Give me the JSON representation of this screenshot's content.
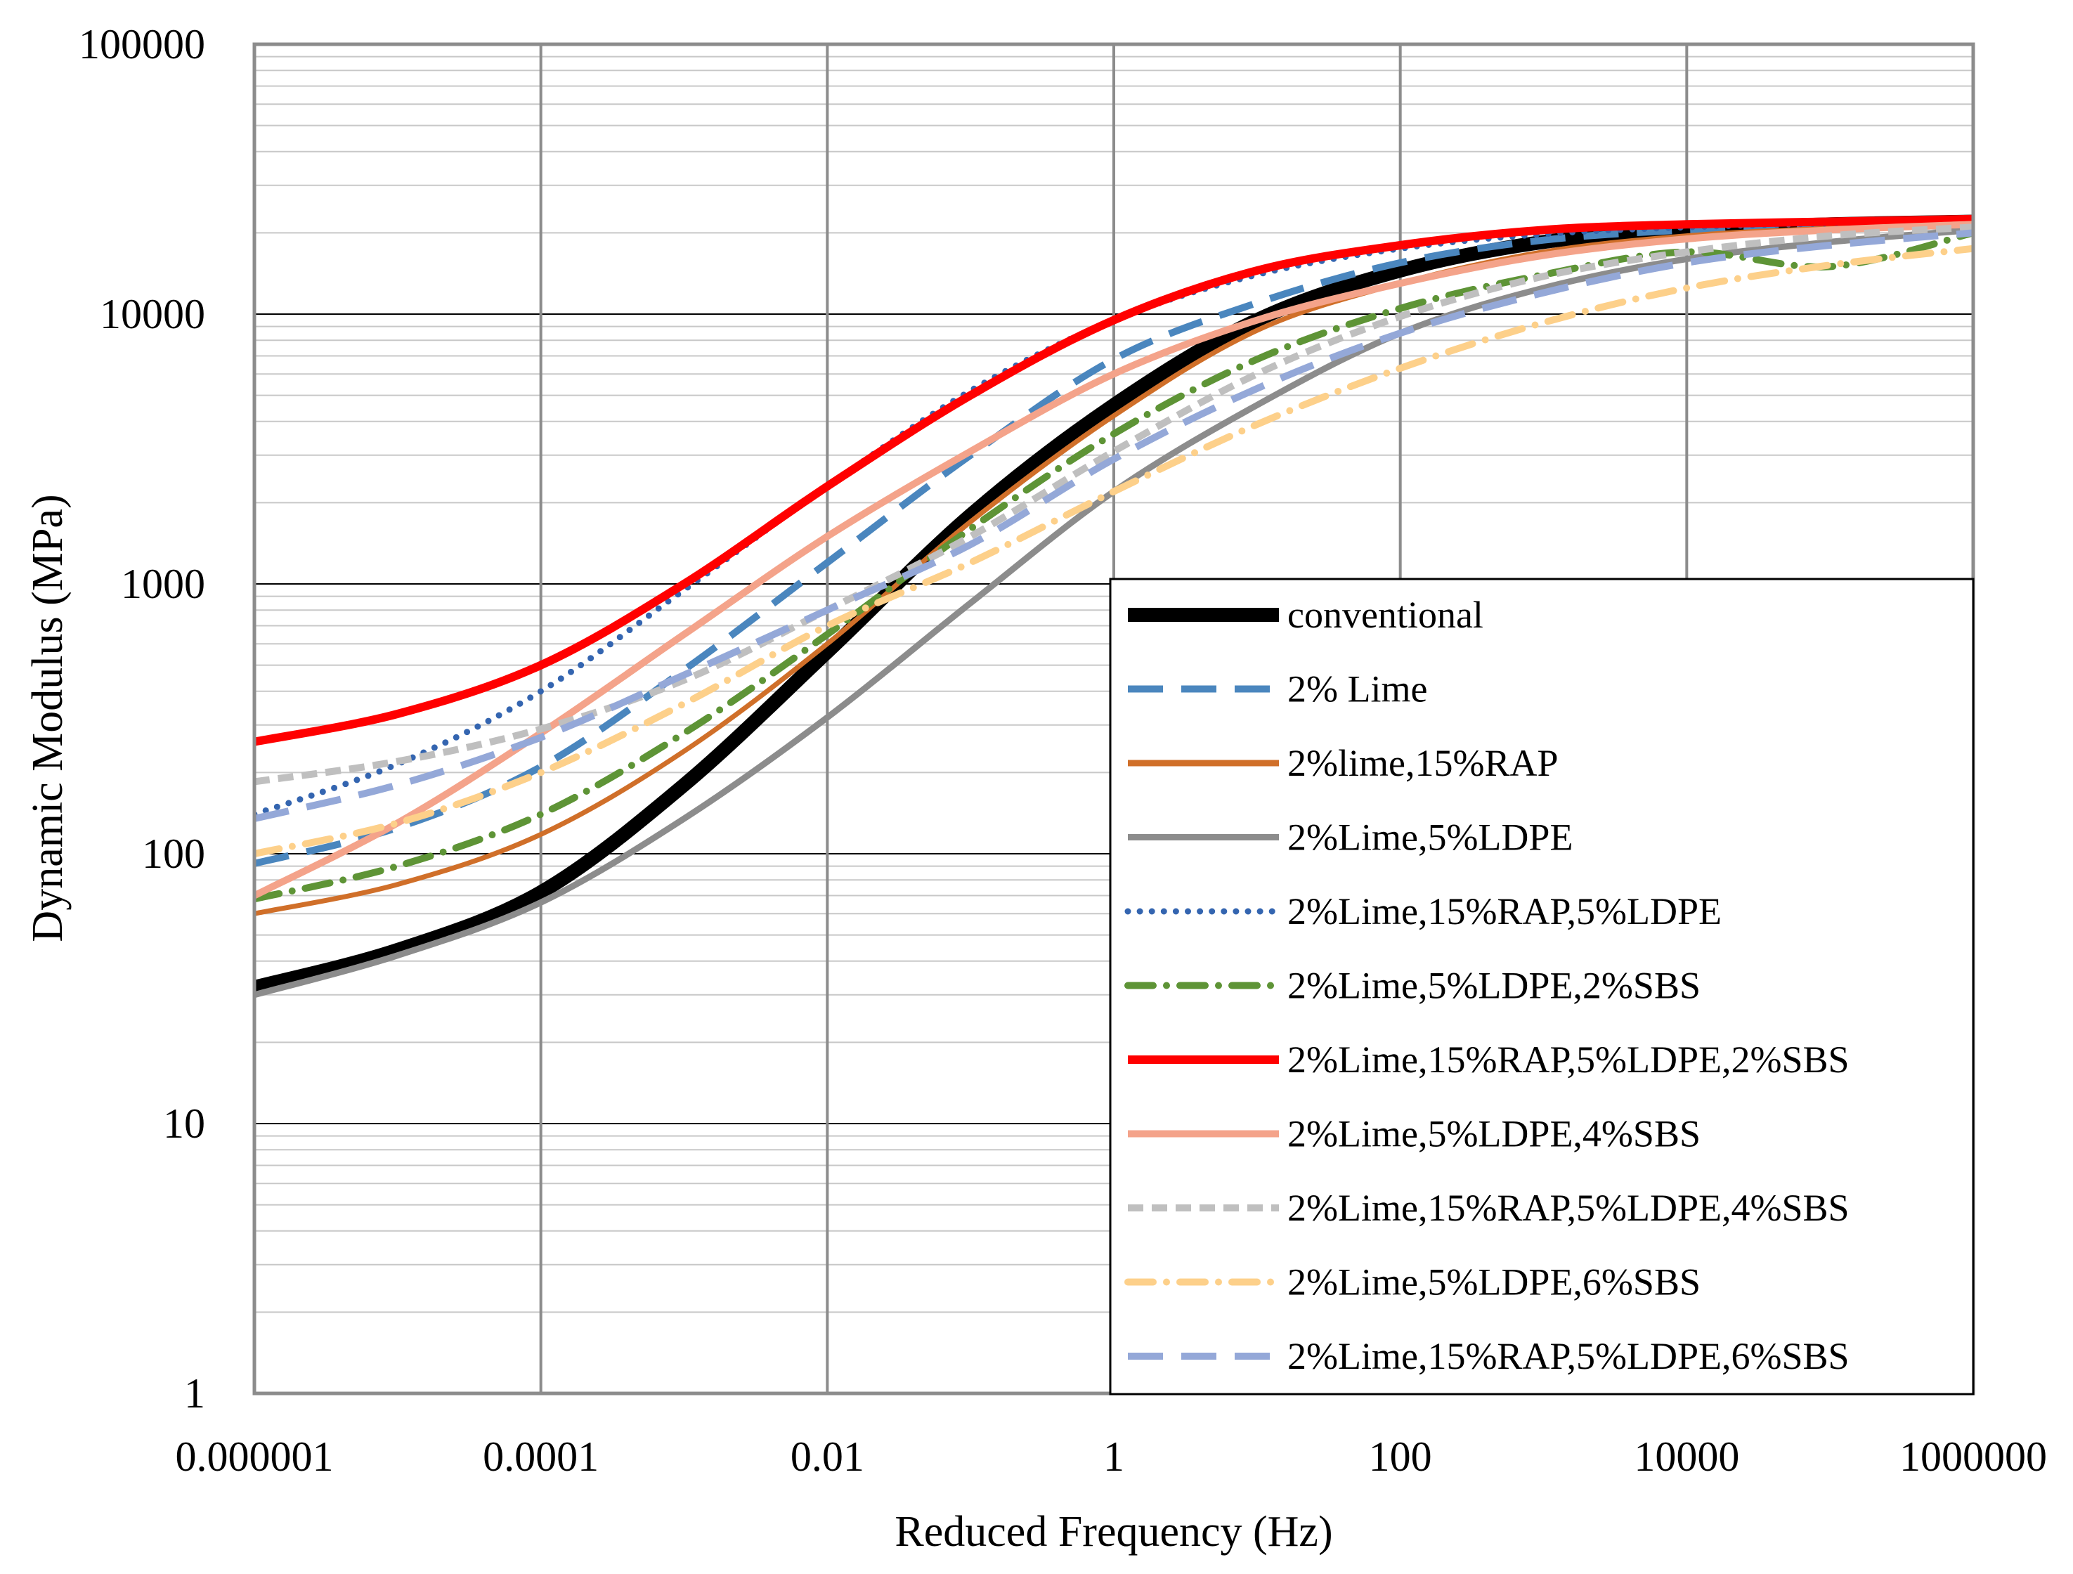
{
  "chart_data": {
    "type": "line",
    "title": "",
    "xlabel": "Reduced Frequency (Hz)",
    "ylabel": "Dynamic Modulus (MPa)",
    "xscale": "log",
    "yscale": "log",
    "xlim": [
      1e-06,
      1000000
    ],
    "ylim": [
      1,
      100000
    ],
    "grid": true,
    "legend_position": "bottom-right",
    "x_ticks": [
      {
        "value": 1e-06,
        "label": "0.000001"
      },
      {
        "value": 0.0001,
        "label": "0.0001"
      },
      {
        "value": 0.01,
        "label": "0.01"
      },
      {
        "value": 1,
        "label": "1"
      },
      {
        "value": 100,
        "label": "100"
      },
      {
        "value": 10000,
        "label": "10000"
      },
      {
        "value": 1000000,
        "label": "1000000"
      }
    ],
    "y_ticks": [
      {
        "value": 1,
        "label": "1"
      },
      {
        "value": 10,
        "label": "10"
      },
      {
        "value": 100,
        "label": "100"
      },
      {
        "value": 1000,
        "label": "1000"
      },
      {
        "value": 10000,
        "label": "10000"
      },
      {
        "value": 100000,
        "label": "100000"
      }
    ],
    "x": [
      1e-06,
      1e-05,
      0.0001,
      0.001,
      0.01,
      0.1,
      1,
      10,
      100,
      1000,
      10000,
      100000,
      1000000
    ],
    "series": [
      {
        "name": "conventional",
        "color": "#000000",
        "dash": "solid",
        "width": 20,
        "values": [
          32,
          44,
          72,
          180,
          560,
          1800,
          4600,
          9500,
          14500,
          18500,
          20500,
          21500,
          22000
        ]
      },
      {
        "name": "2% Lime",
        "color": "#4a86be",
        "dash": "long-dash",
        "width": 10,
        "values": [
          92,
          125,
          210,
          480,
          1200,
          3000,
          6800,
          11000,
          15500,
          18800,
          20500,
          21300,
          21800
        ]
      },
      {
        "name": "2%lime,15%RAP",
        "color": "#d06f29",
        "dash": "solid",
        "width": 7,
        "values": [
          60,
          77,
          118,
          240,
          600,
          1700,
          4200,
          8700,
          13000,
          17000,
          19500,
          20800,
          21500
        ]
      },
      {
        "name": "2%Lime,5%LDPE",
        "color": "#8c8c8c",
        "dash": "solid",
        "width": 9,
        "values": [
          30,
          42,
          66,
          135,
          320,
          850,
          2200,
          4600,
          8500,
          12500,
          16000,
          18500,
          20500
        ]
      },
      {
        "name": "2%Lime,15%RAP,5%LDPE",
        "color": "#3465b0",
        "dash": "dotted",
        "width": 9,
        "values": [
          140,
          215,
          400,
          950,
          2300,
          5200,
          9500,
          14000,
          17500,
          19800,
          21000,
          21700,
          22200
        ]
      },
      {
        "name": "2%Lime,5%LDPE,2%SBS",
        "color": "#5e9436",
        "dash": "dash-dot",
        "width": 10,
        "values": [
          68,
          90,
          140,
          280,
          650,
          1600,
          3600,
          6800,
          10500,
          14000,
          17000,
          15000,
          20000
        ]
      },
      {
        "name": "2%Lime,15%RAP,5%LDPE,2%SBS",
        "color": "#ff0000",
        "dash": "solid",
        "width": 12,
        "values": [
          260,
          330,
          500,
          1000,
          2300,
          5000,
          9500,
          14500,
          18000,
          20500,
          21500,
          22000,
          22500
        ]
      },
      {
        "name": "2%Lime,5%LDPE,4%SBS",
        "color": "#f4a38a",
        "dash": "solid",
        "width": 10,
        "values": [
          70,
          130,
          280,
          650,
          1500,
          3100,
          6000,
          9500,
          13000,
          16500,
          19000,
          20500,
          21500
        ]
      },
      {
        "name": "2%Lime,15%RAP,5%LDPE,4%SBS",
        "color": "#bfbfbf",
        "dash": "short-dash",
        "width": 10,
        "values": [
          185,
          220,
          290,
          440,
          800,
          1500,
          3100,
          6000,
          9800,
          13800,
          17000,
          19500,
          21000
        ]
      },
      {
        "name": "2%Lime,5%LDPE,6%SBS",
        "color": "#fdd08a",
        "dash": "dash-dot",
        "width": 10,
        "values": [
          100,
          130,
          200,
          360,
          700,
          1200,
          2200,
          3900,
          6300,
          9300,
          12500,
          15200,
          17500
        ]
      },
      {
        "name": "2%Lime,15%RAP,5%LDPE,6%SBS",
        "color": "#94a8d8",
        "dash": "long-dash",
        "width": 10,
        "values": [
          135,
          180,
          270,
          460,
          800,
          1400,
          2900,
          5300,
          8500,
          12000,
          15500,
          18000,
          20000
        ]
      }
    ]
  }
}
